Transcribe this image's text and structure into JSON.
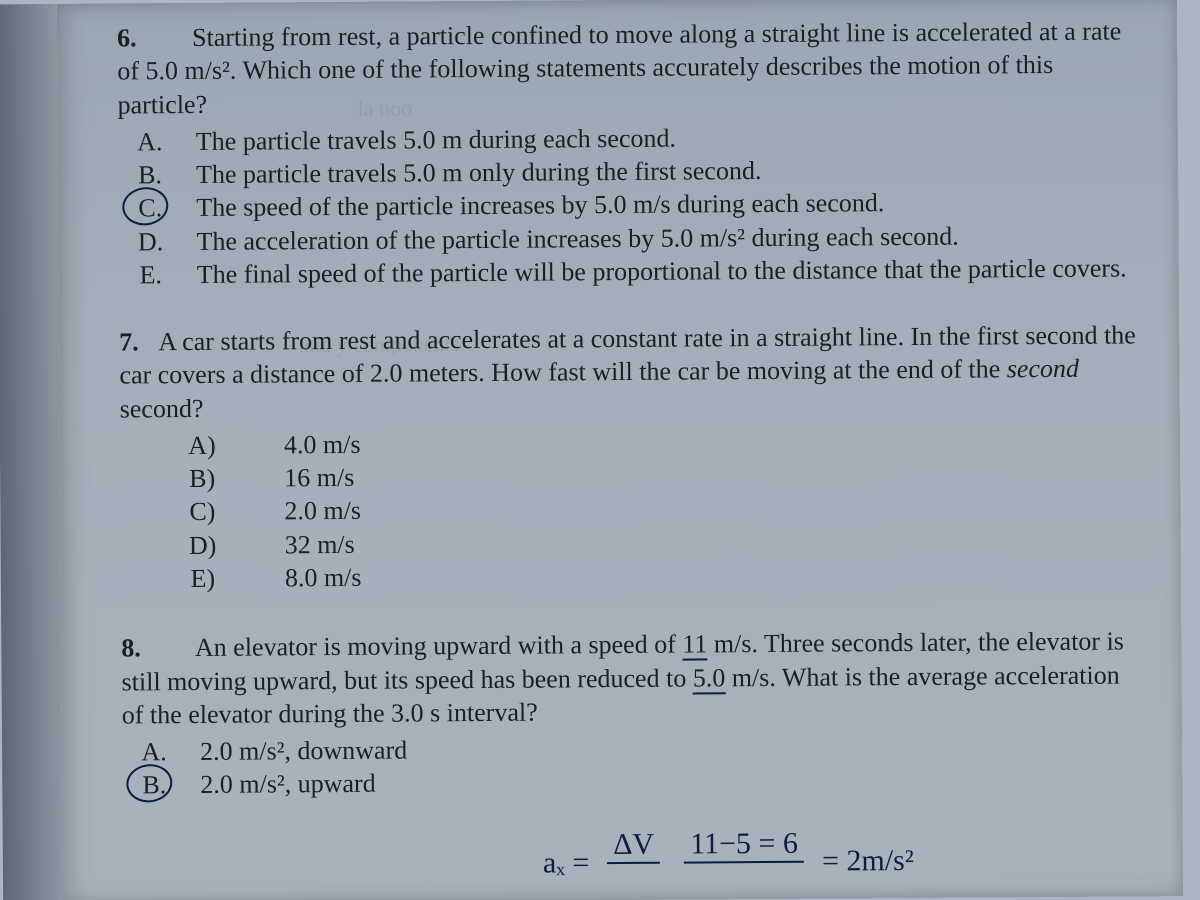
{
  "page": {
    "background_color": "#aab6c2",
    "paper_tint": "#a2aeb9",
    "text_color": "#1a1f24",
    "handwriting_color": "#0a1e40",
    "font_family": "Times New Roman",
    "body_fontsize_pt": 20
  },
  "q6": {
    "number": "6.",
    "stem": "Starting from rest, a particle confined to move along a straight line is accelerated at a rate of 5.0 m/s². Which one of the following statements accurately describes the motion of this particle?",
    "choices": [
      {
        "letter": "A",
        "text": "The particle travels 5.0 m during each second.",
        "circled": false
      },
      {
        "letter": "B",
        "text": "The particle travels 5.0 m only during the first second.",
        "circled": false
      },
      {
        "letter": "C",
        "text": "The speed of the particle increases by 5.0 m/s during each second.",
        "circled": true
      },
      {
        "letter": "D",
        "text": "The acceleration of the particle increases by 5.0 m/s² during each second.",
        "circled": false
      },
      {
        "letter": "E",
        "text": "The final speed of the particle will be proportional to the distance that the particle covers.",
        "circled": false
      }
    ],
    "letter_style": "dot"
  },
  "q7": {
    "number": "7.",
    "stem": "A car starts from rest and accelerates at a constant rate in a straight line.  In the first second the car covers a distance of 2.0 meters. How fast will the car be moving at the end of the second second?",
    "italic_word": "second",
    "choices": [
      {
        "letter": "A",
        "text": "4.0 m/s"
      },
      {
        "letter": "B",
        "text": "16 m/s"
      },
      {
        "letter": "C",
        "text": "2.0 m/s"
      },
      {
        "letter": "D",
        "text": "32 m/s"
      },
      {
        "letter": "E",
        "text": "8.0 m/s"
      }
    ],
    "letter_style": "paren"
  },
  "q8": {
    "number": "8.",
    "stem_parts": {
      "pre1": "An elevator is moving upward with a speed of ",
      "u1": "11",
      "post1": " m/s. Three seconds later, the elevator is still moving upward, but its speed has been reduced to ",
      "u2": "5.0",
      "post2": " m/s. What is the average acceleration of the elevator during the 3.0 s interval?"
    },
    "choices": [
      {
        "letter": "A",
        "text": "2.0 m/s², downward",
        "circled": false
      },
      {
        "letter": "B",
        "text": "2.0 m/s², upward",
        "circled": true
      }
    ],
    "letter_style": "dot",
    "handwork": {
      "lhs": "aₓ =",
      "frac_top": "ΔV",
      "eq_top": "11−5 = 6",
      "result": "= 2m/s²"
    }
  }
}
